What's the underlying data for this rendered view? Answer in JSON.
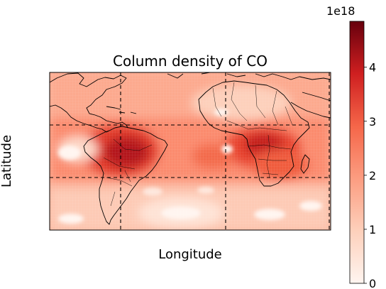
{
  "chart_data": {
    "type": "heatmap",
    "title": "Column density of CO",
    "xlabel": "Longitude",
    "ylabel": "Latitude",
    "colormap": "Reds",
    "colorbar": {
      "min": 0,
      "max": 4.85,
      "ticks": [
        0,
        1,
        2,
        3,
        4
      ],
      "tick_labels": [
        "0",
        "1",
        "2",
        "3",
        "4"
      ],
      "exponent_label": "1e18"
    },
    "grid": true,
    "high_regions": [
      "Amazon basin (South America)",
      "Central Africa"
    ],
    "low_regions": [
      "Saharan north Africa",
      "Southern mid-latitude ocean",
      "Eastern Pacific"
    ]
  }
}
